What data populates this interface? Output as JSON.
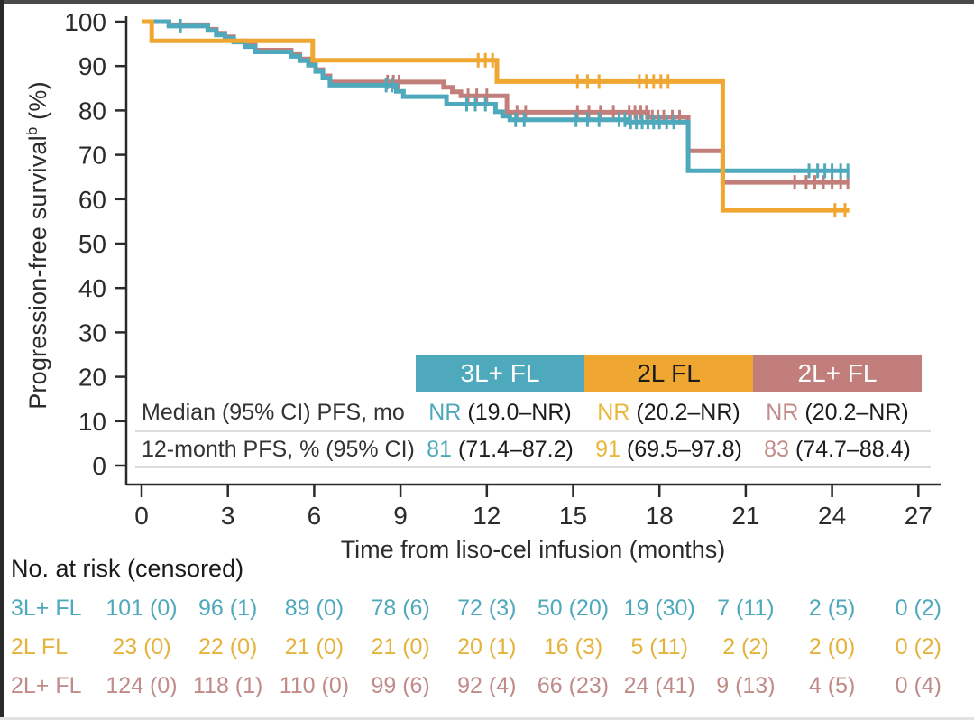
{
  "figure": {
    "y_axis_label_main": "Progression-free survival",
    "y_axis_label_sup": "b",
    "y_axis_label_unit": " (%)",
    "x_axis_label": "Time from liso-cel infusion (months)"
  },
  "colors": {
    "teal": "#4FA9BC",
    "yellow": "#F0A732",
    "rose": "#C17E7A",
    "axis": "#2b2b2b",
    "divider": "#dcdcdc"
  },
  "stats_table": {
    "columns": [
      {
        "label": "3L+ FL",
        "color_key": "teal"
      },
      {
        "label": "2L FL",
        "color_key": "yellow"
      },
      {
        "label": "2L+ FL",
        "color_key": "rose"
      }
    ],
    "rows": [
      {
        "label": "Median (95% CI) PFS, mo",
        "values": [
          {
            "lead": "NR",
            "rest": "(19.0–NR)"
          },
          {
            "lead": "NR",
            "rest": "(20.2–NR)"
          },
          {
            "lead": "NR",
            "rest": "(20.2–NR)"
          }
        ]
      },
      {
        "label": "12-month PFS, % (95% CI)",
        "values": [
          {
            "lead": "81",
            "rest": "(71.4–87.2)"
          },
          {
            "lead": "91",
            "rest": "(69.5–97.8)"
          },
          {
            "lead": "83",
            "rest": "(74.7–88.4)"
          }
        ]
      }
    ]
  },
  "at_risk": {
    "title": "No. at risk (censored)",
    "rows": [
      {
        "label": "3L+ FL",
        "color_key": "teal",
        "values": [
          "101 (0)",
          "96 (1)",
          "89 (0)",
          "78 (6)",
          "72 (3)",
          "50 (20)",
          "19 (30)",
          "7 (11)",
          "2 (5)",
          "0 (2)"
        ]
      },
      {
        "label": "2L FL",
        "color_key": "yellow",
        "values": [
          "23 (0)",
          "22 (0)",
          "21 (0)",
          "21 (0)",
          "20 (1)",
          "16 (3)",
          "5 (11)",
          "2 (2)",
          "2 (0)",
          "0 (2)"
        ]
      },
      {
        "label": "2L+ FL",
        "color_key": "rose",
        "values": [
          "124 (0)",
          "118 (1)",
          "110 (0)",
          "99 (6)",
          "92 (4)",
          "66 (23)",
          "24 (41)",
          "9 (13)",
          "4 (5)",
          "0 (4)"
        ]
      }
    ]
  },
  "chart_data": {
    "type": "line",
    "subtype": "kaplan-meier-step",
    "title": "",
    "xlabel": "Time from liso-cel infusion (months)",
    "ylabel": "Progression-free survival (%)",
    "xticks": [
      0,
      3,
      6,
      9,
      12,
      15,
      18,
      21,
      24,
      27
    ],
    "yticks": [
      0,
      10,
      20,
      30,
      40,
      50,
      60,
      70,
      80,
      90,
      100
    ],
    "xlim": [
      0,
      27.7
    ],
    "ylim": [
      0,
      100
    ],
    "grid": false,
    "legend_position": "embedded-table-header",
    "series": [
      {
        "name": "2L+ FL",
        "color_key": "rose",
        "steps": [
          [
            0,
            100
          ],
          [
            0.95,
            99.3
          ],
          [
            2.3,
            98.3
          ],
          [
            2.6,
            97.4
          ],
          [
            2.9,
            96.6
          ],
          [
            3.2,
            95.7
          ],
          [
            3.6,
            94.7
          ],
          [
            3.95,
            93.6
          ],
          [
            5.2,
            92.6
          ],
          [
            5.5,
            91.6
          ],
          [
            5.8,
            90.6
          ],
          [
            6.05,
            89.2
          ],
          [
            6.3,
            87.8
          ],
          [
            6.55,
            86.4
          ],
          [
            10.5,
            85.2
          ],
          [
            10.8,
            84.2
          ],
          [
            11.1,
            83.3
          ],
          [
            12.7,
            79.6
          ],
          [
            17.6,
            78.5
          ],
          [
            19.0,
            70.9
          ],
          [
            20.2,
            63.8
          ],
          [
            24.6,
            63.8
          ]
        ],
        "censors": [
          8.55,
          8.75,
          8.95,
          11.35,
          11.65,
          12.0,
          13.05,
          13.35,
          15.15,
          15.55,
          15.95,
          16.4,
          16.95,
          17.15,
          17.35,
          17.55,
          17.75,
          17.95,
          18.15,
          18.45,
          18.7,
          22.7,
          23.1,
          23.4,
          23.7,
          24.0,
          24.3,
          24.55
        ]
      },
      {
        "name": "3L+ FL",
        "color_key": "teal",
        "steps": [
          [
            0,
            100
          ],
          [
            0.95,
            99
          ],
          [
            2.3,
            98
          ],
          [
            2.6,
            97
          ],
          [
            2.9,
            96.3
          ],
          [
            3.2,
            95.4
          ],
          [
            3.6,
            94.4
          ],
          [
            3.95,
            93.2
          ],
          [
            5.2,
            92.2
          ],
          [
            5.5,
            91.2
          ],
          [
            5.8,
            90.2
          ],
          [
            6.05,
            88.8
          ],
          [
            6.3,
            87.3
          ],
          [
            6.55,
            85.7
          ],
          [
            8.85,
            84.3
          ],
          [
            9.1,
            83.1
          ],
          [
            10.6,
            81.4
          ],
          [
            12.3,
            79.7
          ],
          [
            12.55,
            78.7
          ],
          [
            12.8,
            77.9
          ],
          [
            16.9,
            77.4
          ],
          [
            19.0,
            66.4
          ],
          [
            24.6,
            66.4
          ]
        ],
        "censors": [
          1.35,
          8.5,
          8.7,
          11.3,
          11.6,
          11.95,
          13.0,
          13.3,
          15.1,
          15.5,
          15.9,
          16.6,
          16.8,
          17.0,
          17.2,
          17.4,
          17.6,
          17.8,
          18.0,
          18.25,
          18.5,
          23.2,
          23.5,
          23.75,
          24.0,
          24.3,
          24.55
        ]
      },
      {
        "name": "2L FL",
        "color_key": "yellow",
        "steps": [
          [
            0,
            100
          ],
          [
            0.35,
            95.7
          ],
          [
            5.95,
            91.3
          ],
          [
            12.35,
            86.5
          ],
          [
            20.2,
            57.5
          ],
          [
            24.6,
            57.5
          ]
        ],
        "censors": [
          11.7,
          11.95,
          12.2,
          15.15,
          15.5,
          15.9,
          17.3,
          17.55,
          17.8,
          18.05,
          18.3,
          24.1,
          24.45
        ]
      }
    ],
    "annotations": {
      "median_pfs": {
        "3L+ FL": "NR (19.0-NR)",
        "2L FL": "NR (20.2-NR)",
        "2L+ FL": "NR (20.2-NR)"
      },
      "pfs_12_month_pct": {
        "3L+ FL": "81 (71.4-87.2)",
        "2L FL": "91 (69.5-97.8)",
        "2L+ FL": "83 (74.7-88.4)"
      }
    }
  }
}
